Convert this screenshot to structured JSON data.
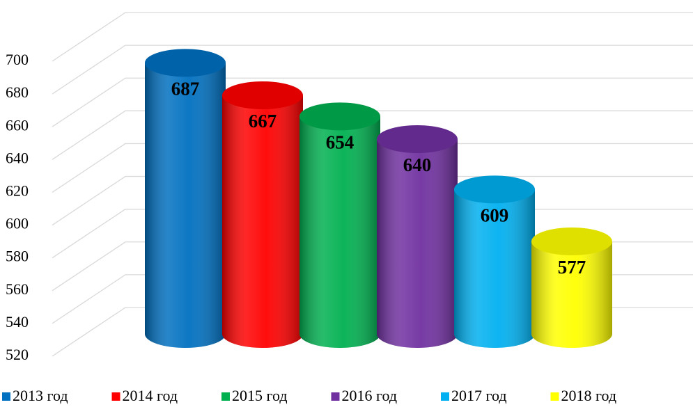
{
  "chart_data": {
    "type": "bar",
    "series": [
      {
        "name": "2013 год",
        "color": "#0070c0",
        "values": [
          687
        ]
      },
      {
        "name": "2014 год",
        "color": "#ff0000",
        "values": [
          667
        ]
      },
      {
        "name": "2015 год",
        "color": "#00b050",
        "values": [
          654
        ]
      },
      {
        "name": "2016 год",
        "color": "#7030a0",
        "values": [
          640
        ]
      },
      {
        "name": "2017 год",
        "color": "#00b0f0",
        "values": [
          609
        ]
      },
      {
        "name": "2018 год",
        "color": "#ffff00",
        "values": [
          577
        ]
      }
    ],
    "ylim": [
      520,
      700
    ],
    "yticks": [
      520,
      540,
      560,
      580,
      600,
      620,
      640,
      660,
      680,
      700
    ],
    "grid": true,
    "legend": "bottom"
  }
}
